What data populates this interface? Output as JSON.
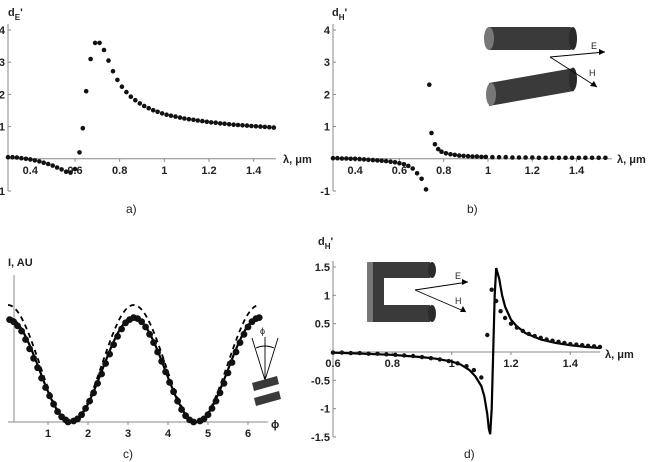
{
  "chart_data": [
    {
      "id": "a",
      "type": "scatter",
      "panel_label": "a)",
      "ylabel": {
        "base": "d",
        "sub": "E",
        "prime": "'"
      },
      "xlabel": "λ, μm",
      "xlim": [
        0.3,
        1.5
      ],
      "ylim": [
        -1,
        4
      ],
      "xticks": [
        0.4,
        0.6,
        0.8,
        1,
        1.2,
        1.4
      ],
      "xtick_labels": [
        "0.4",
        "0.6",
        "0.8",
        "1",
        "1.2",
        "1.4"
      ],
      "yticks": [
        -1,
        1,
        2,
        3,
        4
      ],
      "ytick_labels": [
        "-1",
        "1",
        "2",
        "3",
        "4"
      ],
      "series": [
        {
          "style": "dots",
          "x": [
            0.3,
            0.32,
            0.34,
            0.36,
            0.38,
            0.4,
            0.42,
            0.44,
            0.46,
            0.48,
            0.5,
            0.52,
            0.54,
            0.56,
            0.58,
            0.6,
            0.62,
            0.635,
            0.65,
            0.67,
            0.69,
            0.71,
            0.73,
            0.75,
            0.77,
            0.79,
            0.81,
            0.83,
            0.85,
            0.87,
            0.89,
            0.91,
            0.93,
            0.95,
            0.97,
            0.99,
            1.01,
            1.03,
            1.05,
            1.07,
            1.09,
            1.11,
            1.13,
            1.15,
            1.17,
            1.19,
            1.21,
            1.23,
            1.25,
            1.27,
            1.29,
            1.31,
            1.33,
            1.35,
            1.37,
            1.39,
            1.41,
            1.43,
            1.45,
            1.47,
            1.49
          ],
          "y": [
            0.05,
            0.05,
            0.04,
            0.02,
            0.0,
            -0.02,
            -0.05,
            -0.08,
            -0.12,
            -0.16,
            -0.21,
            -0.27,
            -0.33,
            -0.4,
            -0.43,
            -0.32,
            0.2,
            0.95,
            2.1,
            3.1,
            3.6,
            3.6,
            3.38,
            3.05,
            2.72,
            2.45,
            2.24,
            2.07,
            1.93,
            1.82,
            1.72,
            1.64,
            1.57,
            1.51,
            1.46,
            1.41,
            1.37,
            1.34,
            1.31,
            1.28,
            1.25,
            1.23,
            1.21,
            1.19,
            1.17,
            1.15,
            1.13,
            1.12,
            1.1,
            1.09,
            1.07,
            1.06,
            1.05,
            1.04,
            1.03,
            1.02,
            1.01,
            1.0,
            0.99,
            0.98,
            0.97
          ]
        }
      ]
    },
    {
      "id": "b",
      "type": "scatter",
      "panel_label": "b)",
      "ylabel": {
        "base": "d",
        "sub": "H",
        "prime": "'"
      },
      "xlabel": "λ, μm",
      "xlim": [
        0.3,
        1.56
      ],
      "ylim": [
        -1,
        4
      ],
      "xticks": [
        0.4,
        0.6,
        0.8,
        1,
        1.2,
        1.4
      ],
      "xtick_labels": [
        "0.4",
        "0.6",
        "0.8",
        "1",
        "1.2",
        "1.4"
      ],
      "yticks": [
        -1,
        1,
        2,
        3,
        4
      ],
      "ytick_labels": [
        "-1",
        "1",
        "2",
        "3",
        "4"
      ],
      "inset_labels": [
        "E",
        "H"
      ],
      "series": [
        {
          "style": "dots",
          "x": [
            0.3,
            0.32,
            0.34,
            0.36,
            0.38,
            0.4,
            0.42,
            0.44,
            0.46,
            0.48,
            0.5,
            0.52,
            0.54,
            0.56,
            0.58,
            0.6,
            0.62,
            0.64,
            0.66,
            0.68,
            0.7,
            0.72,
            0.735,
            0.745,
            0.76,
            0.775,
            0.79,
            0.81,
            0.83,
            0.85,
            0.87,
            0.89,
            0.91,
            0.93,
            0.95,
            0.97,
            0.99,
            1.02,
            1.05,
            1.08,
            1.11,
            1.14,
            1.17,
            1.2,
            1.23,
            1.26,
            1.29,
            1.32,
            1.35,
            1.38,
            1.41,
            1.44,
            1.47,
            1.5,
            1.53
          ],
          "y": [
            0.02,
            0.02,
            0.01,
            0.01,
            0.0,
            0.0,
            -0.01,
            -0.02,
            -0.03,
            -0.04,
            -0.05,
            -0.06,
            -0.07,
            -0.09,
            -0.11,
            -0.14,
            -0.17,
            -0.22,
            -0.3,
            -0.45,
            -0.62,
            -0.95,
            2.3,
            0.8,
            0.45,
            0.3,
            0.22,
            0.17,
            0.14,
            0.12,
            0.1,
            0.09,
            0.08,
            0.07,
            0.07,
            0.06,
            0.06,
            0.05,
            0.05,
            0.05,
            0.04,
            0.04,
            0.04,
            0.04,
            0.03,
            0.03,
            0.03,
            0.03,
            0.03,
            0.03,
            0.03,
            0.03,
            0.03,
            0.03,
            0.03
          ]
        }
      ]
    },
    {
      "id": "c",
      "type": "line",
      "panel_label": "c)",
      "ylabel": "I, AU",
      "xlabel": "ϕ",
      "xlim": [
        0,
        6.5
      ],
      "ylim": [
        0,
        1.35
      ],
      "xticks": [
        1,
        2,
        3,
        4,
        5,
        6
      ],
      "xtick_labels": [
        "1",
        "2",
        "3",
        "4",
        "5",
        "6"
      ],
      "inset_labels": [
        "ϕ"
      ],
      "series": [
        {
          "style": "solid",
          "function": "cos^2",
          "amplitude": 1.0,
          "x": [
            0,
            0.25,
            0.5,
            0.75,
            1,
            1.25,
            1.5,
            1.5708,
            1.75,
            2,
            2.25,
            2.5,
            2.75,
            3,
            3.1416,
            3.25,
            3.5,
            3.75,
            4,
            4.25,
            4.5,
            4.7124,
            5,
            5.25,
            5.5,
            5.75,
            6,
            6.2832
          ],
          "y": [
            1.0,
            0.9388,
            0.7702,
            0.5354,
            0.2919,
            0.0994,
            0.005,
            0.0,
            0.0317,
            0.1732,
            0.3937,
            0.6418,
            0.8515,
            0.9801,
            1.0,
            0.9883,
            0.8727,
            0.6701,
            0.4272,
            0.2022,
            0.0448,
            0.0,
            0.0805,
            0.2651,
            0.5047,
            0.7401,
            0.9219,
            1.0
          ]
        },
        {
          "style": "dashed",
          "function": "cos^2",
          "amplitude": 1.12,
          "x": [
            0,
            0.25,
            0.5,
            0.75,
            1,
            1.25,
            1.5,
            1.5708,
            1.75,
            2,
            2.25,
            2.5,
            2.75,
            3,
            3.1416,
            3.25,
            3.5,
            3.75,
            4,
            4.25,
            4.5,
            4.7124,
            5,
            5.25,
            5.5,
            5.75,
            6,
            6.2832
          ],
          "y": [
            1.12,
            1.0515,
            0.8626,
            0.5996,
            0.3269,
            0.1113,
            0.0056,
            0.0,
            0.0355,
            0.194,
            0.4409,
            0.7188,
            0.9537,
            1.0977,
            1.12,
            1.1069,
            0.9774,
            0.7505,
            0.4785,
            0.2265,
            0.0502,
            0.0,
            0.0902,
            0.2969,
            0.5653,
            0.8289,
            1.0325,
            1.12
          ]
        },
        {
          "style": "dots",
          "x": [
            0.04,
            0.14,
            0.24,
            0.34,
            0.44,
            0.54,
            0.64,
            0.74,
            0.84,
            0.94,
            1.04,
            1.14,
            1.24,
            1.34,
            1.44,
            1.5,
            1.64,
            1.74,
            1.84,
            1.94,
            2.04,
            2.14,
            2.24,
            2.34,
            2.44,
            2.54,
            2.64,
            2.74,
            2.84,
            2.94,
            3.04,
            3.14,
            3.24,
            3.34,
            3.44,
            3.54,
            3.64,
            3.74,
            3.84,
            3.94,
            4.04,
            4.14,
            4.24,
            4.34,
            4.44,
            4.54,
            4.64,
            4.8,
            4.9,
            5.0,
            5.1,
            5.2,
            5.3,
            5.4,
            5.5,
            5.6,
            5.7,
            5.8,
            5.9,
            6.0,
            6.1,
            6.2,
            6.28
          ],
          "y": [
            0.98,
            0.96,
            0.92,
            0.87,
            0.79,
            0.7,
            0.61,
            0.52,
            0.42,
            0.33,
            0.25,
            0.17,
            0.1,
            0.05,
            0.02,
            0.0,
            0.01,
            0.03,
            0.07,
            0.13,
            0.2,
            0.28,
            0.37,
            0.46,
            0.56,
            0.65,
            0.74,
            0.82,
            0.89,
            0.95,
            0.98,
            1.0,
            0.99,
            0.96,
            0.91,
            0.84,
            0.76,
            0.67,
            0.58,
            0.48,
            0.38,
            0.29,
            0.2,
            0.12,
            0.06,
            0.02,
            0.0,
            0.01,
            0.03,
            0.07,
            0.13,
            0.2,
            0.28,
            0.37,
            0.47,
            0.57,
            0.67,
            0.76,
            0.84,
            0.91,
            0.96,
            0.99,
            1.0
          ]
        }
      ]
    },
    {
      "id": "d",
      "type": "line",
      "panel_label": "d)",
      "ylabel": {
        "base": "d",
        "sub": "H",
        "prime": "'"
      },
      "xlabel": "λ, μm",
      "xlim": [
        0.6,
        1.5
      ],
      "ylim": [
        -1.5,
        1.5
      ],
      "xticks": [
        0.6,
        0.8,
        1,
        1.2,
        1.4
      ],
      "xtick_labels": [
        "0.6",
        "0.8",
        "1",
        "1.2",
        "1.4"
      ],
      "yticks": [
        -1.5,
        -1,
        -0.5,
        0.5,
        1,
        1.5
      ],
      "ytick_labels": [
        "-1.5",
        "-1",
        "-0.5",
        "0.5",
        "1",
        "1.5"
      ],
      "inset_labels": [
        "E",
        "H"
      ],
      "series": [
        {
          "style": "solid",
          "x": [
            0.6,
            0.65,
            0.7,
            0.75,
            0.8,
            0.85,
            0.9,
            0.95,
            1.0,
            1.03,
            1.06,
            1.08,
            1.1,
            1.11,
            1.12,
            1.125,
            1.13,
            1.135,
            1.14,
            1.145,
            1.15,
            1.16,
            1.17,
            1.18,
            1.2,
            1.22,
            1.25,
            1.3,
            1.35,
            1.4,
            1.45,
            1.5
          ],
          "y": [
            -0.01,
            -0.02,
            -0.03,
            -0.04,
            -0.05,
            -0.07,
            -0.09,
            -0.12,
            -0.17,
            -0.22,
            -0.32,
            -0.43,
            -0.6,
            -0.78,
            -1.1,
            -1.35,
            -1.45,
            -1.0,
            0.0,
            1.0,
            1.48,
            1.3,
            1.0,
            0.8,
            0.57,
            0.45,
            0.33,
            0.22,
            0.16,
            0.12,
            0.09,
            0.07
          ]
        },
        {
          "style": "dots",
          "x": [
            0.6,
            0.63,
            0.66,
            0.69,
            0.72,
            0.75,
            0.78,
            0.81,
            0.84,
            0.87,
            0.9,
            0.93,
            0.96,
            0.99,
            1.02,
            1.05,
            1.075,
            1.1,
            1.12,
            1.135,
            1.15,
            1.165,
            1.18,
            1.2,
            1.22,
            1.24,
            1.26,
            1.28,
            1.3,
            1.32,
            1.34,
            1.36,
            1.38,
            1.4,
            1.42,
            1.44,
            1.46,
            1.48,
            1.5
          ],
          "y": [
            -0.01,
            -0.01,
            -0.02,
            -0.02,
            -0.03,
            -0.03,
            -0.04,
            -0.05,
            -0.06,
            -0.07,
            -0.09,
            -0.11,
            -0.13,
            -0.16,
            -0.2,
            -0.25,
            -0.32,
            -0.45,
            0.3,
            1.1,
            0.9,
            0.72,
            0.6,
            0.5,
            0.43,
            0.37,
            0.32,
            0.28,
            0.25,
            0.22,
            0.2,
            0.18,
            0.16,
            0.14,
            0.13,
            0.12,
            0.11,
            0.1,
            0.09
          ]
        }
      ]
    }
  ]
}
